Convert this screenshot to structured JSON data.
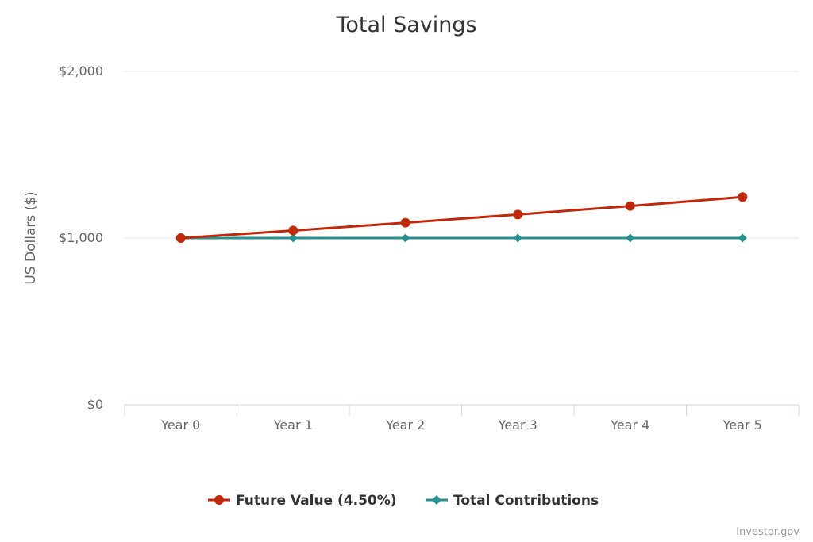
{
  "chart_data": {
    "type": "line",
    "title": "Total Savings",
    "ylabel": "US Dollars ($)",
    "xlabel": "",
    "categories": [
      "Year 0",
      "Year 1",
      "Year 2",
      "Year 3",
      "Year 4",
      "Year 5"
    ],
    "ylim": [
      0,
      2000
    ],
    "yticks": [
      0,
      1000,
      2000
    ],
    "ytick_labels": [
      "$0",
      "$1,000",
      "$2,000"
    ],
    "grid": true,
    "legend_position": "bottom-center",
    "series": [
      {
        "name": "Future Value (4.50%)",
        "color": "#c0280c",
        "marker": "circle",
        "values": [
          1000,
          1045,
          1092.03,
          1141.17,
          1192.52,
          1246.18
        ]
      },
      {
        "name": "Total Contributions",
        "color": "#2a8f8f",
        "marker": "diamond",
        "values": [
          1000,
          1000,
          1000,
          1000,
          1000,
          1000
        ]
      }
    ]
  },
  "credit": "Investor.gov"
}
